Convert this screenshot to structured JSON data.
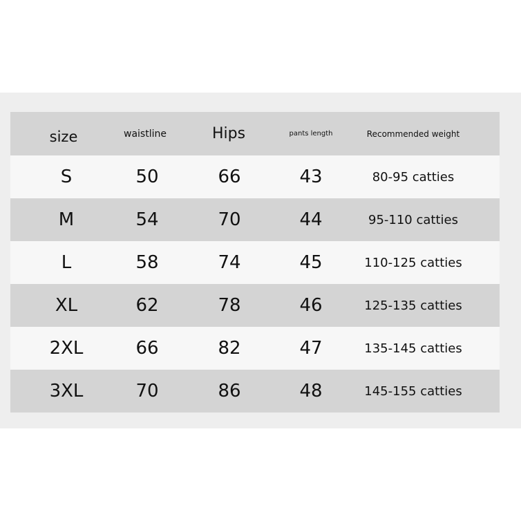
{
  "colors": {
    "panel": "#eeeeee",
    "header": "#d4d4d4",
    "row_light": "#f7f7f7",
    "row_dark": "#d4d4d4"
  },
  "table": {
    "headers": [
      "size",
      "waistline",
      "Hips",
      "pants length",
      "Recommended weight"
    ],
    "rows": [
      [
        "S",
        "50",
        "66",
        "43",
        "80-95 catties"
      ],
      [
        "M",
        "54",
        "70",
        "44",
        "95-110 catties"
      ],
      [
        "L",
        "58",
        "74",
        "45",
        "110-125 catties"
      ],
      [
        "XL",
        "62",
        "78",
        "46",
        "125-135 catties"
      ],
      [
        "2XL",
        "66",
        "82",
        "47",
        "135-145 catties"
      ],
      [
        "3XL",
        "70",
        "86",
        "48",
        "145-155 catties"
      ]
    ]
  }
}
